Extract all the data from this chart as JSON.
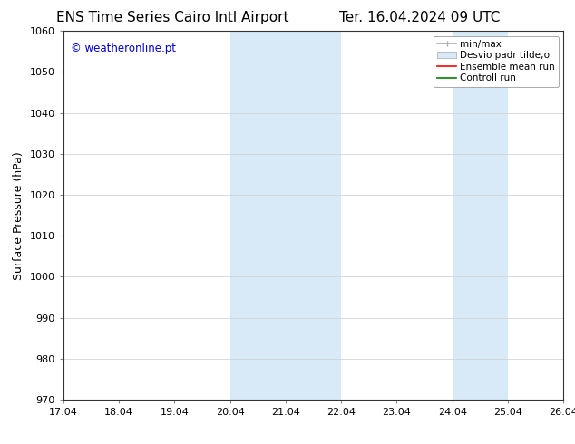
{
  "title_left": "ENS Time Series Cairo Intl Airport",
  "title_right": "Ter. 16.04.2024 09 UTC",
  "ylabel": "Surface Pressure (hPa)",
  "ylim": [
    970,
    1060
  ],
  "yticks": [
    970,
    980,
    990,
    1000,
    1010,
    1020,
    1030,
    1040,
    1050,
    1060
  ],
  "xlim_dates": [
    "17.04",
    "18.04",
    "19.04",
    "20.04",
    "21.04",
    "22.04",
    "23.04",
    "24.04",
    "25.04",
    "26.04"
  ],
  "xlim": [
    0,
    9
  ],
  "xtick_positions": [
    0,
    1,
    2,
    3,
    4,
    5,
    6,
    7,
    8,
    9
  ],
  "shaded_regions": [
    {
      "xmin": 3,
      "xmax": 5,
      "color": "#d8eaf7"
    },
    {
      "xmin": 7,
      "xmax": 8,
      "color": "#d8eaf7"
    }
  ],
  "watermark_text": "© weatheronline.pt",
  "watermark_color": "#0000cc",
  "background_color": "#ffffff",
  "grid_color": "#cccccc",
  "title_fontsize": 11,
  "tick_fontsize": 8,
  "ylabel_fontsize": 9,
  "legend_fontsize": 7.5
}
